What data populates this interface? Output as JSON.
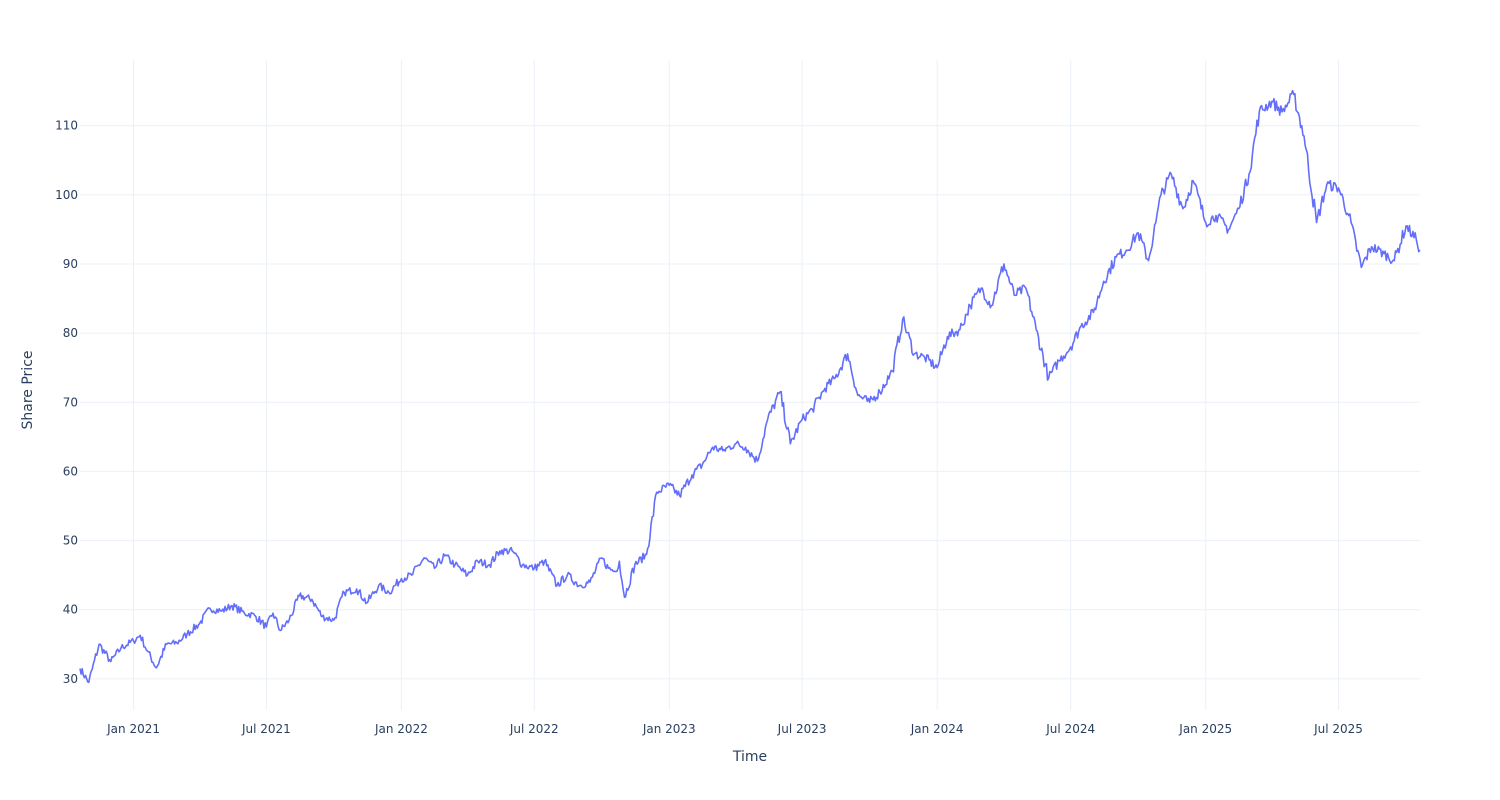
{
  "chart_data": {
    "type": "line",
    "title": "",
    "xlabel": "Time",
    "ylabel": "Share Price",
    "x_tick_labels": [
      "Jan 2021",
      "Jul 2021",
      "Jan 2022",
      "Jul 2022",
      "Jan 2023",
      "Jul 2023",
      "Jan 2024",
      "Jul 2024",
      "Jan 2025",
      "Jul 2025"
    ],
    "x_tick_dates": [
      "2021-01-01",
      "2021-07-01",
      "2022-01-01",
      "2022-07-01",
      "2023-01-01",
      "2023-07-01",
      "2024-01-01",
      "2024-07-01",
      "2025-01-01",
      "2025-07-01"
    ],
    "y_ticks": [
      30,
      40,
      50,
      60,
      70,
      80,
      90,
      100,
      110
    ],
    "xlim": [
      "2020-10-20",
      "2025-10-20"
    ],
    "ylim": [
      25.5,
      119.5
    ],
    "grid": true,
    "line_color": "#636efa",
    "series": [
      {
        "x": [
          "2020-10-20",
          "2020-11-01",
          "2020-11-15",
          "2020-12-01",
          "2020-12-15",
          "2021-01-01",
          "2021-01-10",
          "2021-01-20",
          "2021-02-01",
          "2021-02-15",
          "2021-03-01",
          "2021-03-15",
          "2021-04-01",
          "2021-04-15",
          "2021-05-01",
          "2021-05-15",
          "2021-06-01",
          "2021-06-15",
          "2021-07-01",
          "2021-07-10",
          "2021-07-20",
          "2021-08-01",
          "2021-08-15",
          "2021-09-01",
          "2021-09-15",
          "2021-10-01",
          "2021-10-15",
          "2021-11-01",
          "2021-11-15",
          "2021-12-01",
          "2021-12-15",
          "2022-01-01",
          "2022-01-15",
          "2022-02-01",
          "2022-02-15",
          "2022-03-01",
          "2022-03-15",
          "2022-04-01",
          "2022-04-15",
          "2022-05-01",
          "2022-05-15",
          "2022-06-01",
          "2022-06-15",
          "2022-07-01",
          "2022-07-15",
          "2022-08-01",
          "2022-08-15",
          "2022-09-01",
          "2022-09-15",
          "2022-10-01",
          "2022-10-10",
          "2022-10-20",
          "2022-10-25",
          "2022-11-01",
          "2022-11-15",
          "2022-12-01",
          "2022-12-15",
          "2023-01-01",
          "2023-01-15",
          "2023-02-01",
          "2023-02-15",
          "2023-03-01",
          "2023-03-15",
          "2023-04-01",
          "2023-04-15",
          "2023-05-01",
          "2023-05-15",
          "2023-06-01",
          "2023-06-15",
          "2023-07-01",
          "2023-07-15",
          "2023-08-01",
          "2023-08-15",
          "2023-09-01",
          "2023-09-15",
          "2023-10-01",
          "2023-10-15",
          "2023-11-01",
          "2023-11-15",
          "2023-12-01",
          "2023-12-15",
          "2024-01-01",
          "2024-01-15",
          "2024-02-01",
          "2024-02-15",
          "2024-03-01",
          "2024-03-15",
          "2024-04-01",
          "2024-04-15",
          "2024-05-01",
          "2024-05-15",
          "2024-06-01",
          "2024-06-15",
          "2024-07-01",
          "2024-07-15",
          "2024-08-01",
          "2024-08-15",
          "2024-09-01",
          "2024-09-15",
          "2024-10-01",
          "2024-10-15",
          "2024-10-25",
          "2024-11-01",
          "2024-11-15",
          "2024-12-01",
          "2024-12-15",
          "2025-01-01",
          "2025-01-15",
          "2025-02-01",
          "2025-02-15",
          "2025-03-01",
          "2025-03-15",
          "2025-04-01",
          "2025-04-15",
          "2025-05-01",
          "2025-05-15",
          "2025-06-01",
          "2025-06-15",
          "2025-07-01",
          "2025-07-15",
          "2025-08-01",
          "2025-08-15",
          "2025-09-01",
          "2025-09-15",
          "2025-10-01",
          "2025-10-15",
          "2025-10-20"
        ],
        "y": [
          31.5,
          29.5,
          35.0,
          32.5,
          34.5,
          35.5,
          36.3,
          34.0,
          31.6,
          35.0,
          35.2,
          36.5,
          38.0,
          40.2,
          39.8,
          40.6,
          39.5,
          39.2,
          37.5,
          39.5,
          37.0,
          38.5,
          42.0,
          41.5,
          39.0,
          38.5,
          42.5,
          43.0,
          41.0,
          43.5,
          42.5,
          44.5,
          45.0,
          47.5,
          46.0,
          47.8,
          46.5,
          45.0,
          47.0,
          46.5,
          48.5,
          48.5,
          46.5,
          46.0,
          47.0,
          43.5,
          45.0,
          43.5,
          44.0,
          47.5,
          46.0,
          45.5,
          47.0,
          41.8,
          46.5,
          48.0,
          57.0,
          58.0,
          56.5,
          59.5,
          61.0,
          63.5,
          63.0,
          64.0,
          63.5,
          61.5,
          67.5,
          71.5,
          64.0,
          67.5,
          69.0,
          72.0,
          73.5,
          77.0,
          71.0,
          70.0,
          71.5,
          74.5,
          82.0,
          77.0,
          76.5,
          75.0,
          79.5,
          80.5,
          84.0,
          86.5,
          84.0,
          90.0,
          85.5,
          86.5,
          80.5,
          73.5,
          76.0,
          78.0,
          81.0,
          83.0,
          87.5,
          91.0,
          92.0,
          94.5,
          90.5,
          96.0,
          100.0,
          103.0,
          98.0,
          102.0,
          96.0,
          97.0,
          95.0,
          98.0,
          103.0,
          112.0,
          113.5,
          112.0,
          114.5,
          108.5,
          96.0,
          101.5,
          101.0,
          97.0,
          89.5,
          92.5,
          91.5,
          90.5,
          95.5,
          93.5,
          92.0
        ]
      }
    ]
  }
}
